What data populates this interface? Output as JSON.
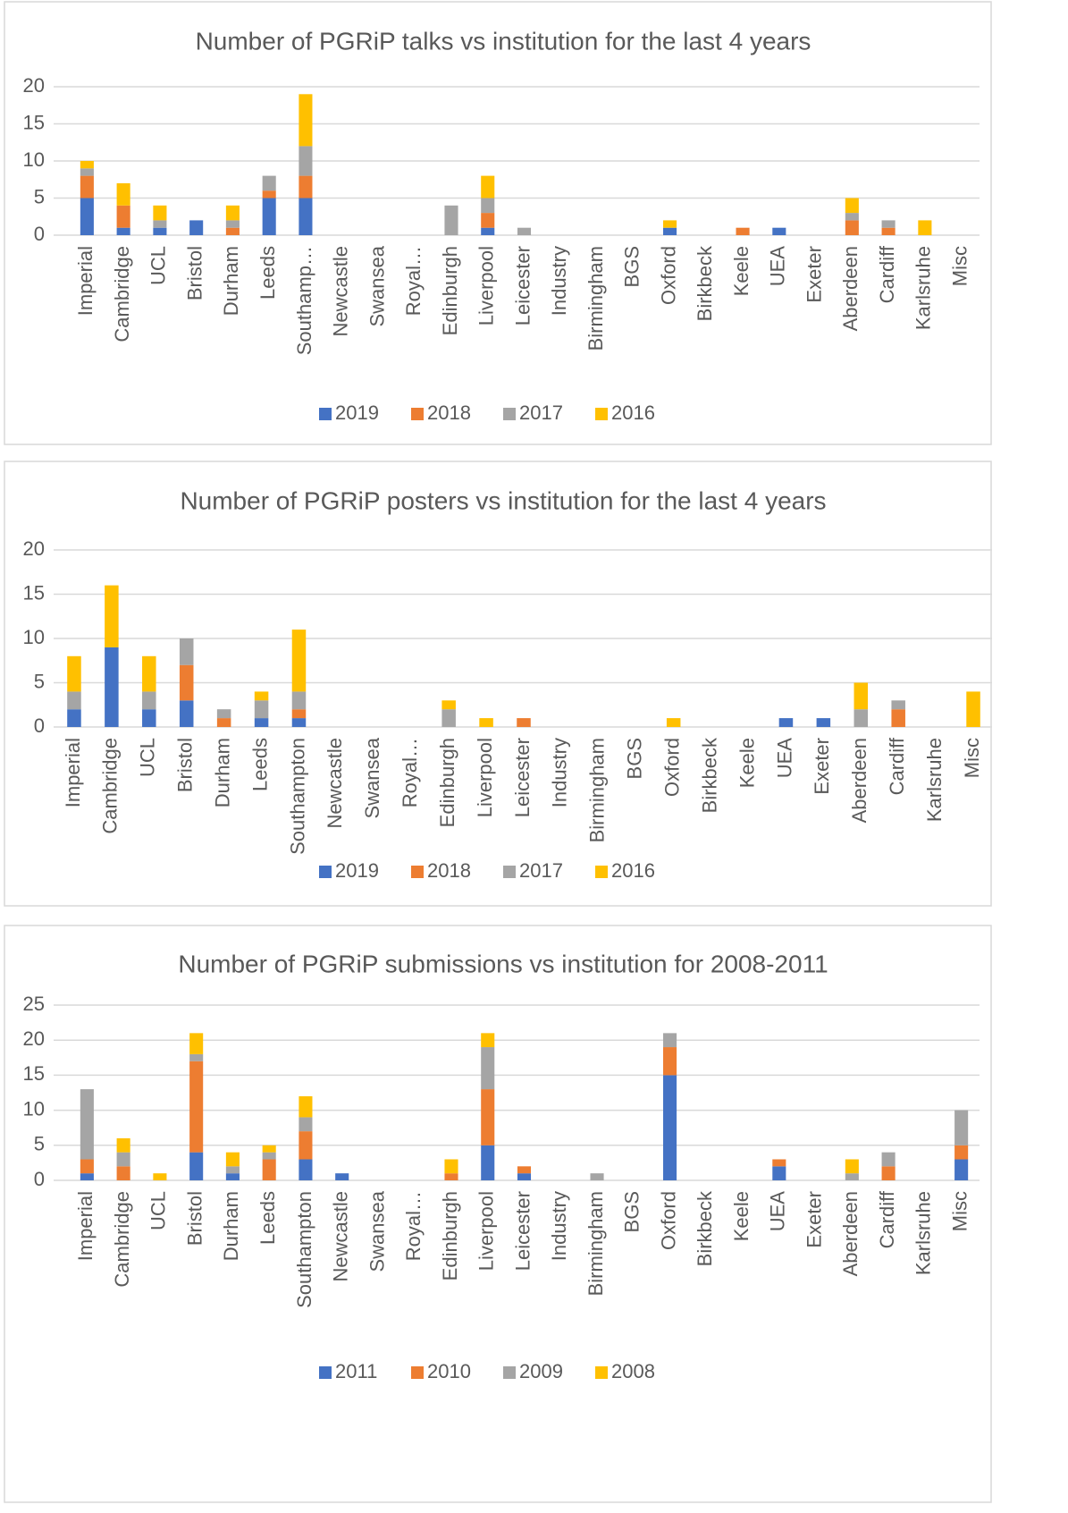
{
  "chart_data": [
    {
      "type": "bar",
      "stacked": true,
      "title": "Number of PGRiP talks vs institution for the last 4 years",
      "categories": [
        "Imperial",
        "Cambridge",
        "UCL",
        "Bristol",
        "Durham",
        "Leeds",
        "Southamp…",
        "Newcastle",
        "Swansea",
        "Royal…",
        "Edinburgh",
        "Liverpool",
        "Leicester",
        "Industry",
        "Birmingham",
        "BGS",
        "Oxford",
        "Birkbeck",
        "Keele",
        "UEA",
        "Exeter",
        "Aberdeen",
        "Cardiff",
        "Karlsruhe",
        "Misc"
      ],
      "series": [
        {
          "name": "2019",
          "color": "#4472c4",
          "values": [
            5,
            1,
            1,
            2,
            0,
            5,
            5,
            0,
            0,
            0,
            0,
            1,
            0,
            0,
            0,
            0,
            1,
            0,
            0,
            1,
            0,
            0,
            0,
            0,
            0
          ]
        },
        {
          "name": "2018",
          "color": "#ed7d31",
          "values": [
            3,
            3,
            0,
            0,
            1,
            1,
            3,
            0,
            0,
            0,
            0,
            2,
            0,
            0,
            0,
            0,
            0,
            0,
            1,
            0,
            0,
            2,
            1,
            0,
            0
          ]
        },
        {
          "name": "2017",
          "color": "#a5a5a5",
          "values": [
            1,
            0,
            1,
            0,
            1,
            2,
            4,
            0,
            0,
            0,
            4,
            2,
            1,
            0,
            0,
            0,
            0,
            0,
            0,
            0,
            0,
            1,
            1,
            0,
            0
          ]
        },
        {
          "name": "2016",
          "color": "#ffc000",
          "values": [
            1,
            3,
            2,
            0,
            2,
            0,
            7,
            0,
            0,
            0,
            0,
            3,
            0,
            0,
            0,
            0,
            1,
            0,
            0,
            0,
            0,
            2,
            0,
            2,
            0
          ]
        }
      ],
      "ylim": [
        0,
        20
      ],
      "yticks": [
        0,
        5,
        10,
        15,
        20
      ],
      "grid": true,
      "legend": "bottom"
    },
    {
      "type": "bar",
      "stacked": true,
      "title": "Number of PGRiP posters vs institution for the last 4 years",
      "categories": [
        "Imperial",
        "Cambridge",
        "UCL",
        "Bristol",
        "Durham",
        "Leeds",
        "Southampton",
        "Newcastle",
        "Swansea",
        "Royal…",
        "Edinburgh",
        "Liverpool",
        "Leicester",
        "Industry",
        "Birmingham",
        "BGS",
        "Oxford",
        "Birkbeck",
        "Keele",
        "UEA",
        "Exeter",
        "Aberdeen",
        "Cardiff",
        "Karlsruhe",
        "Misc"
      ],
      "series": [
        {
          "name": "2019",
          "color": "#4472c4",
          "values": [
            2,
            9,
            2,
            3,
            0,
            1,
            1,
            0,
            0,
            0,
            0,
            0,
            0,
            0,
            0,
            0,
            0,
            0,
            0,
            1,
            1,
            0,
            0,
            0,
            0
          ]
        },
        {
          "name": "2018",
          "color": "#ed7d31",
          "values": [
            0,
            0,
            0,
            4,
            1,
            0,
            1,
            0,
            0,
            0,
            0,
            0,
            1,
            0,
            0,
            0,
            0,
            0,
            0,
            0,
            0,
            0,
            2,
            0,
            0
          ]
        },
        {
          "name": "2017",
          "color": "#a5a5a5",
          "values": [
            2,
            0,
            2,
            3,
            1,
            2,
            2,
            0,
            0,
            0,
            2,
            0,
            0,
            0,
            0,
            0,
            0,
            0,
            0,
            0,
            0,
            2,
            1,
            0,
            0
          ]
        },
        {
          "name": "2016",
          "color": "#ffc000",
          "values": [
            4,
            7,
            4,
            0,
            0,
            1,
            7,
            0,
            0,
            0,
            1,
            1,
            0,
            0,
            0,
            0,
            1,
            0,
            0,
            0,
            0,
            3,
            0,
            0,
            4
          ]
        }
      ],
      "ylim": [
        0,
        20
      ],
      "yticks": [
        0,
        5,
        10,
        15,
        20
      ],
      "grid": true,
      "legend": "bottom"
    },
    {
      "type": "bar",
      "stacked": true,
      "title": "Number of PGRiP submissions vs institution for 2008-2011",
      "categories": [
        "Imperial",
        "Cambridge",
        "UCL",
        "Bristol",
        "Durham",
        "Leeds",
        "Southampton",
        "Newcastle",
        "Swansea",
        "Royal…",
        "Edinburgh",
        "Liverpool",
        "Leicester",
        "Industry",
        "Birmingham",
        "BGS",
        "Oxford",
        "Birkbeck",
        "Keele",
        "UEA",
        "Exeter",
        "Aberdeen",
        "Cardiff",
        "Karlsruhe",
        "Misc"
      ],
      "series": [
        {
          "name": "2011",
          "color": "#4472c4",
          "values": [
            1,
            0,
            0,
            4,
            1,
            0,
            3,
            1,
            0,
            0,
            0,
            5,
            1,
            0,
            0,
            0,
            15,
            0,
            0,
            2,
            0,
            0,
            0,
            0,
            3
          ]
        },
        {
          "name": "2010",
          "color": "#ed7d31",
          "values": [
            2,
            2,
            0,
            13,
            0,
            3,
            4,
            0,
            0,
            0,
            1,
            8,
            1,
            0,
            0,
            0,
            4,
            0,
            0,
            1,
            0,
            0,
            2,
            0,
            2
          ]
        },
        {
          "name": "2009",
          "color": "#a5a5a5",
          "values": [
            10,
            2,
            0,
            1,
            1,
            1,
            2,
            0,
            0,
            0,
            0,
            6,
            0,
            0,
            1,
            0,
            2,
            0,
            0,
            0,
            0,
            1,
            2,
            0,
            5
          ]
        },
        {
          "name": "2008",
          "color": "#ffc000",
          "values": [
            0,
            2,
            1,
            3,
            2,
            1,
            3,
            0,
            0,
            0,
            2,
            2,
            0,
            0,
            0,
            0,
            0,
            0,
            0,
            0,
            0,
            2,
            0,
            0,
            0
          ]
        }
      ],
      "ylim": [
        0,
        25
      ],
      "yticks": [
        0,
        5,
        10,
        15,
        20,
        25
      ],
      "grid": true,
      "legend": "bottom"
    }
  ]
}
